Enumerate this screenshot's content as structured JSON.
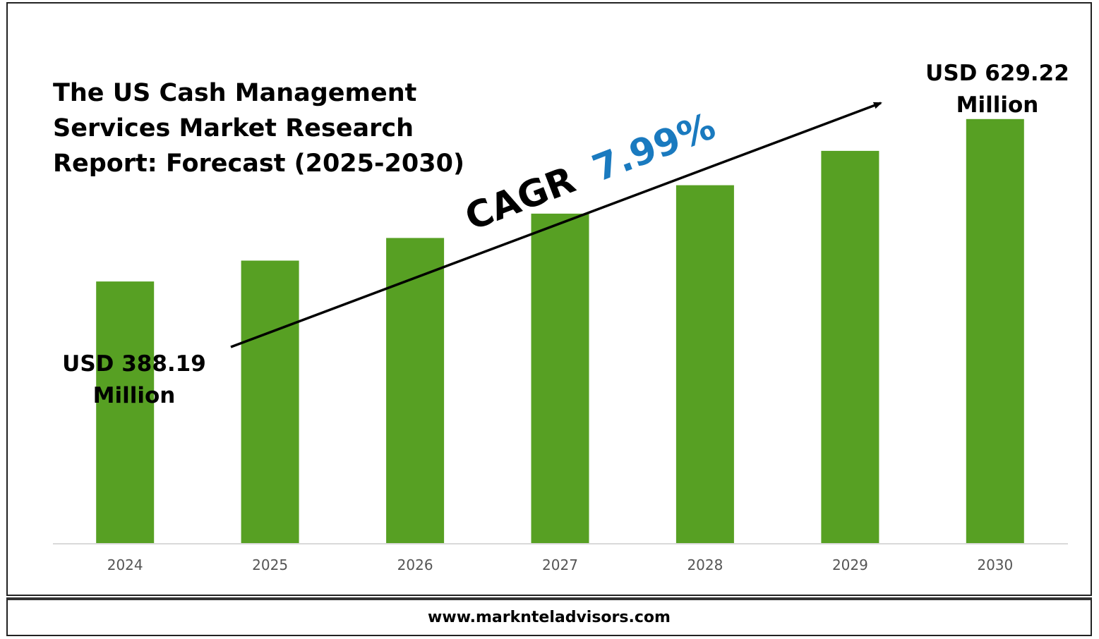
{
  "title_lines": [
    "The US Cash Management",
    "Services Market Research",
    "Report: Forecast (2025-2030)"
  ],
  "cagr": {
    "label": "CAGR",
    "value": "7.99%",
    "label_color": "#000000",
    "value_color": "#1a7abf"
  },
  "start_label": [
    "USD 388.19",
    "Million"
  ],
  "end_label": [
    "USD 629.22",
    "Million"
  ],
  "footer": "www.marknteladvisors.com",
  "colors": {
    "bar": "#57a023",
    "axis": "#d9d9d9",
    "arrow": "#000000"
  },
  "chart_data": {
    "type": "bar",
    "categories": [
      "2024",
      "2025",
      "2026",
      "2027",
      "2028",
      "2029",
      "2030"
    ],
    "values": [
      388.19,
      419.2,
      452.7,
      488.9,
      531.0,
      582.0,
      629.22
    ],
    "ylim": [
      0,
      700
    ],
    "xlabel": "",
    "ylabel": "",
    "grid": false
  }
}
